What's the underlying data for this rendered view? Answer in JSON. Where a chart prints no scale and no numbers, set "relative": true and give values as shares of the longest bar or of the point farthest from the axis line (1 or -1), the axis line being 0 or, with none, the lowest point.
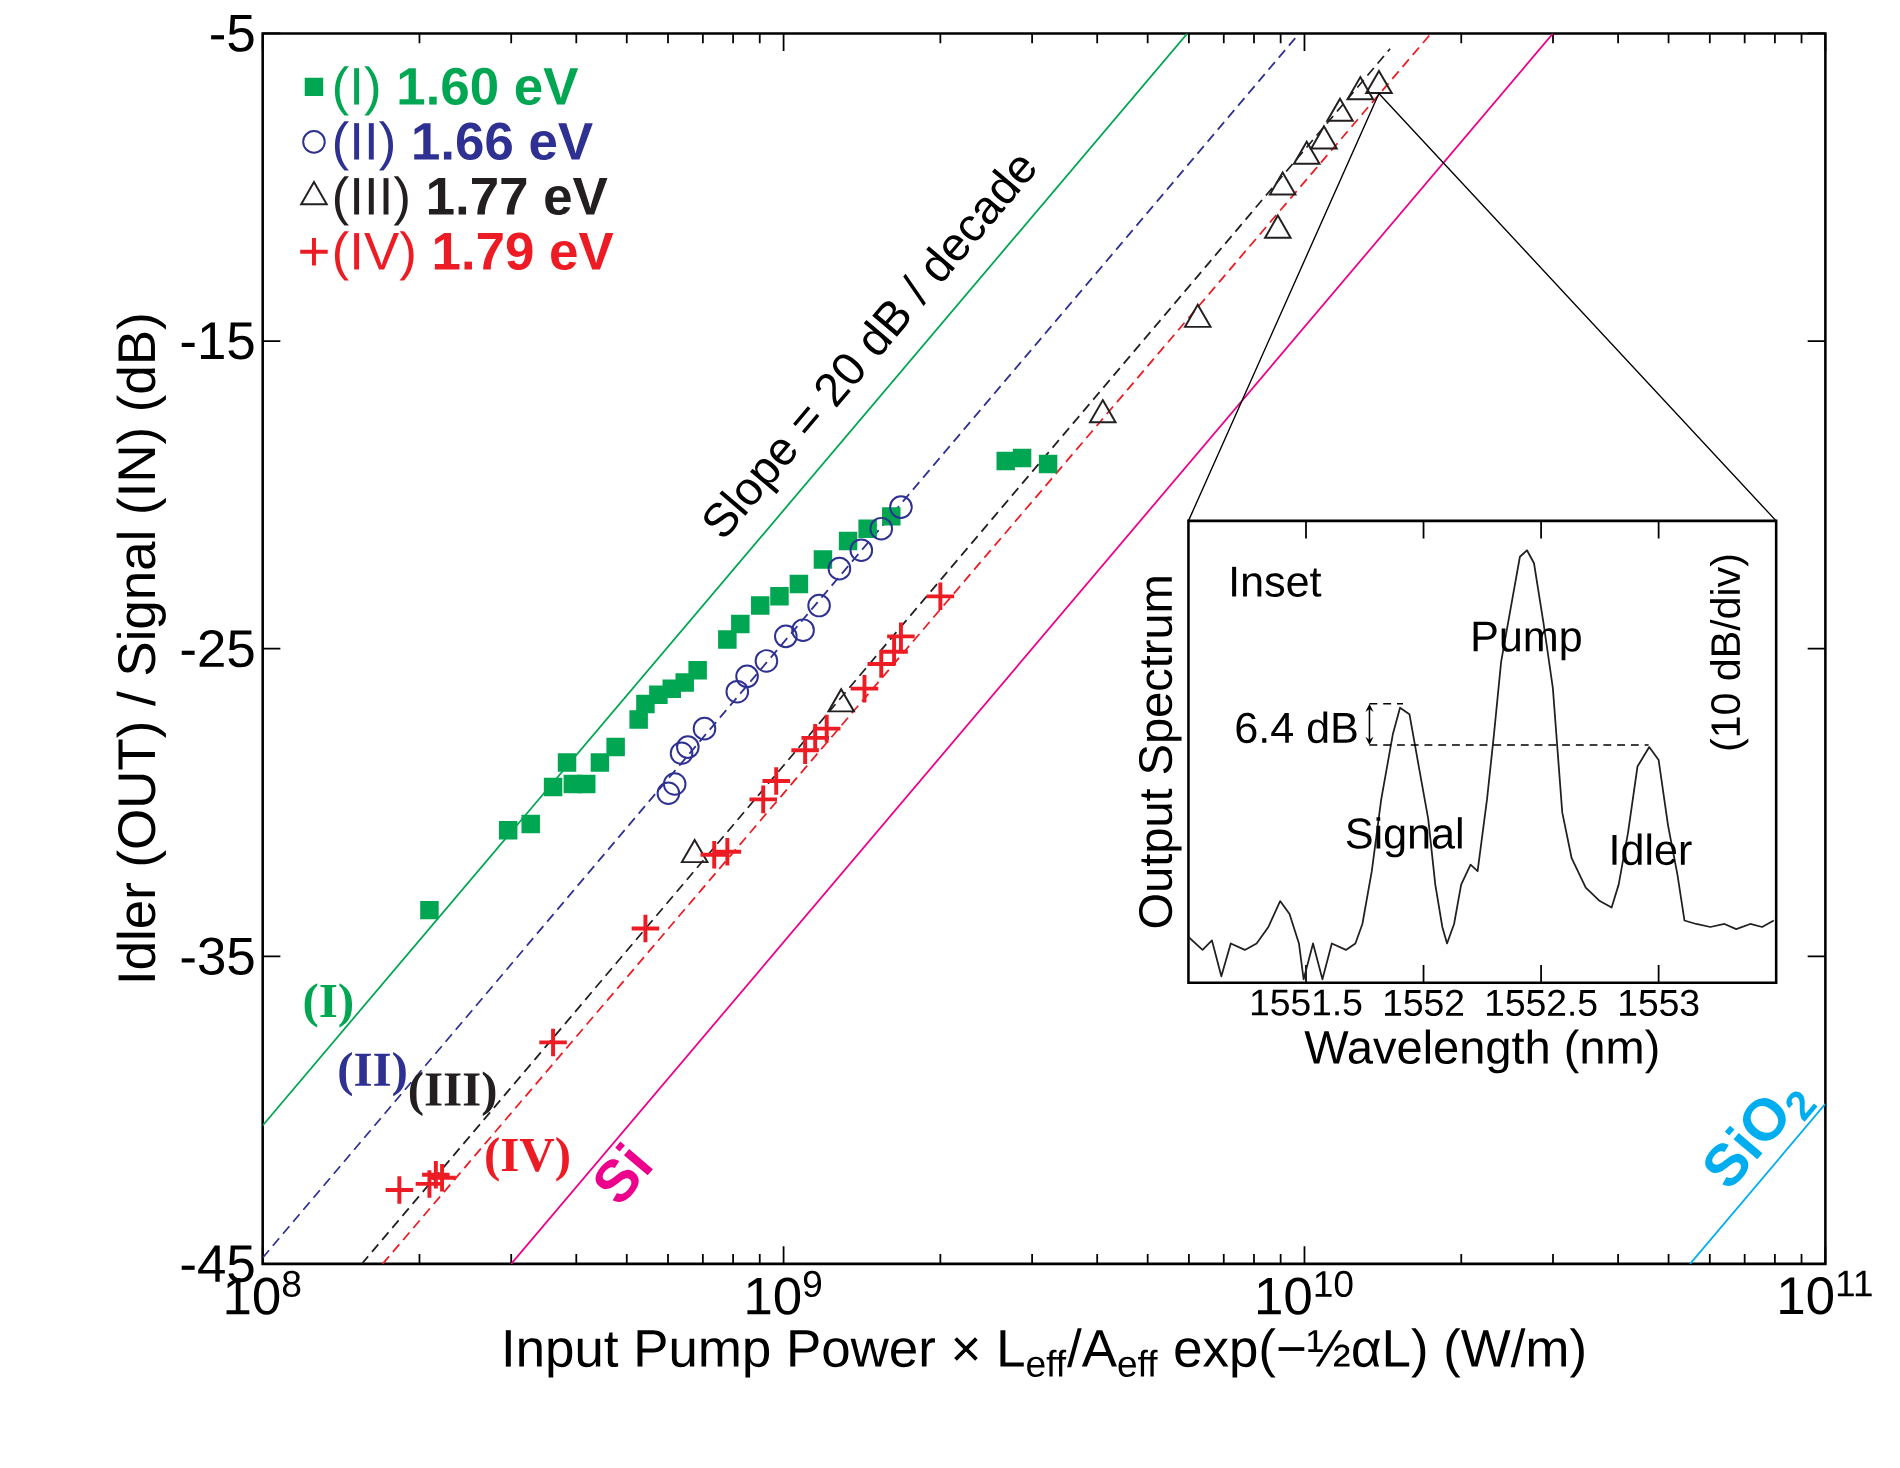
{
  "chart_data": [
    {
      "type": "scatter",
      "xlabel": "Input Pump Power × L$_{eff}$/A$_{eff}$ exp(−½αL)  (W/m)",
      "ylabel": "Idler (OUT) / Signal (IN)  (dB)",
      "log": "x",
      "legend": "top left",
      "xlim": [
        100000000.0,
        100000000000.0
      ],
      "ylim": [
        -45,
        -5
      ],
      "xticks": [
        {
          "value": 100000000.0,
          "label": "10$^{8}$"
        },
        {
          "value": 1000000000.0,
          "label": "10$^{9}$"
        },
        {
          "value": 10000000000.0,
          "label": "10$^{10}$"
        },
        {
          "value": 100000000000.0,
          "label": "10$^{11}$"
        }
      ],
      "yticks": [
        -45,
        -35,
        -25,
        -15,
        -5
      ],
      "annotations": [
        "Slope = 20 dB / decade"
      ],
      "series": [
        {
          "name": "(I) **1.60 eV**",
          "color": "#00a651",
          "marker": "square",
          "x": [
            209000000.0,
            296000000.0,
            327000000.0,
            361000000.0,
            394000000.0,
            418000000.0,
            384000000.0,
            444000000.0,
            476000000.0,
            527000000.0,
            543000000.0,
            575000000.0,
            610000000.0,
            646000000.0,
            684000000.0,
            780000000.0,
            826000000.0,
            902000000.0,
            982000000.0,
            1070000000.0,
            1190000000.0,
            1330000000.0,
            1450000000.0,
            1610000000.0,
            2670000000.0,
            2870000000.0,
            3220000000.0
          ],
          "values": [
            -33.5,
            -30.9,
            -30.7,
            -29.5,
            -29.4,
            -29.4,
            -28.7,
            -28.7,
            -28.2,
            -27.3,
            -26.8,
            -26.5,
            -26.3,
            -26.1,
            -25.7,
            -24.7,
            -24.2,
            -23.6,
            -23.3,
            -22.9,
            -22.1,
            -21.5,
            -21.1,
            -20.7,
            -18.9,
            -18.8,
            -19.0
          ]
        },
        {
          "name": "(II) **1.66 eV**",
          "color": "#2e3192",
          "marker": "circle",
          "x": [
            601000000.0,
            618000000.0,
            637000000.0,
            655000000.0,
            705000000.0,
            815000000.0,
            851000000.0,
            927000000.0,
            1010000000.0,
            1090000000.0,
            1170000000.0,
            1280000000.0,
            1410000000.0,
            1540000000.0,
            1680000000.0
          ],
          "values": [
            -29.7,
            -29.4,
            -28.4,
            -28.2,
            -27.6,
            -26.4,
            -25.9,
            -25.4,
            -24.6,
            -24.4,
            -23.6,
            -22.4,
            -21.8,
            -21.1,
            -20.4
          ]
        },
        {
          "name": "(III) **1.77 eV**",
          "color": "#231f20",
          "marker": "triangle",
          "x": [
            675000000.0,
            1290000000.0,
            4100000000.0,
            6240000000.0,
            8890000000.0,
            9080000000.0,
            10100000000.0,
            10900000000.0,
            11700000000.0,
            12800000000.0,
            13900000000.0
          ],
          "values": [
            -31.7,
            -26.8,
            -17.4,
            -14.3,
            -11.4,
            -10.0,
            -9.0,
            -8.5,
            -7.6,
            -6.9,
            -6.7
          ]
        },
        {
          "name": "(IV) **1.79 eV**",
          "color": "#ed1c24",
          "marker": "cross",
          "x": [
            183000000.0,
            209000000.0,
            215000000.0,
            221000000.0,
            361000000.0,
            543000000.0,
            736000000.0,
            780000000.0,
            914000000.0,
            968000000.0,
            1100000000.0,
            1150000000.0,
            1210000000.0,
            1430000000.0,
            1540000000.0,
            1630000000.0,
            1680000000.0,
            2000000000.0
          ],
          "values": [
            -42.6,
            -42.4,
            -42.1,
            -42.2,
            -37.8,
            -34.1,
            -31.7,
            -31.6,
            -29.9,
            -29.3,
            -28.3,
            -27.9,
            -27.6,
            -26.3,
            -25.5,
            -25.1,
            -24.6,
            -23.3
          ]
        },
        {
          "type": "line",
          "name": "(I)",
          "color": "#00a651",
          "line_style": "solid",
          "x": [
            100000000.0,
            5960000000.0
          ],
          "values": [
            -40.5,
            -5
          ]
        },
        {
          "type": "line",
          "name": "(II)",
          "color": "#2e3192",
          "line_style": "dashed",
          "x": [
            100000000.0,
            9770000000.0
          ],
          "values": [
            -44.8,
            -5
          ]
        },
        {
          "type": "line",
          "name": "(III)",
          "color": "#231f20",
          "line_style": "dashed",
          "x": [
            155000000.0,
            14600000000.0
          ],
          "values": [
            -45,
            -5.5
          ]
        },
        {
          "type": "line",
          "name": "(IV)",
          "color": "#ed1c24",
          "line_style": "dashed",
          "x": [
            170000000.0,
            17500000000.0
          ],
          "values": [
            -45,
            -5
          ]
        },
        {
          "type": "line",
          "name": "Si",
          "color": "#ec008c",
          "line_style": "solid",
          "x": [
            300000000.0,
            30000000000.0
          ],
          "values": [
            -45,
            -5
          ]
        },
        {
          "type": "line",
          "name": "SiO$_{2}$",
          "color": "#00aeef",
          "line_style": "solid",
          "x": [
            55000000000.0,
            100000000000.0
          ],
          "values": [
            -45,
            -39.8
          ]
        }
      ]
    },
    {
      "type": "line",
      "relative": true,
      "xlabel": "Wavelength (nm)",
      "ylabel": "Output Spectrum",
      "y2label": "(10 dB/div)",
      "tick_labels": "x",
      "xlim": [
        1551.0,
        1553.5
      ],
      "xticks": [
        1551.5,
        1552,
        1552.5,
        1553
      ],
      "annotations": [
        "Inset",
        "Pump",
        "Signal",
        "Idler",
        "6.4 dB"
      ],
      "series": [
        {
          "color": "#231f20",
          "x": [
            1551.0,
            1551.06,
            1551.1,
            1551.14,
            1551.18,
            1551.24,
            1551.29,
            1551.34,
            1551.39,
            1551.43,
            1551.47,
            1551.49,
            1551.53,
            1551.57,
            1551.61,
            1551.67,
            1551.71,
            1551.74,
            1551.78,
            1551.82,
            1551.87,
            1551.9,
            1551.94,
            1551.98,
            1552.02,
            1552.05,
            1552.08,
            1552.1,
            1552.13,
            1552.16,
            1552.2,
            1552.23,
            1552.27,
            1552.3,
            1552.33,
            1552.37,
            1552.41,
            1552.44,
            1552.47,
            1552.51,
            1552.55,
            1552.59,
            1552.63,
            1552.69,
            1552.75,
            1552.8,
            1552.83,
            1552.87,
            1552.91,
            1552.96,
            1553.0,
            1553.04,
            1553.08,
            1553.11,
            1553.16,
            1553.22,
            1553.28,
            1553.33,
            1553.39,
            1553.44,
            1553.49
          ],
          "values": [
            0.106,
            0.076,
            0.098,
            0.015,
            0.091,
            0.076,
            0.091,
            0.129,
            0.189,
            0.159,
            0.091,
            0.008,
            0.091,
            0.008,
            0.091,
            0.076,
            0.091,
            0.136,
            0.258,
            0.424,
            0.576,
            0.636,
            0.621,
            0.5,
            0.379,
            0.227,
            0.129,
            0.091,
            0.136,
            0.227,
            0.273,
            0.258,
            0.424,
            0.576,
            0.742,
            0.864,
            0.985,
            1.0,
            0.97,
            0.833,
            0.682,
            0.394,
            0.288,
            0.22,
            0.189,
            0.174,
            0.227,
            0.348,
            0.5,
            0.545,
            0.515,
            0.364,
            0.25,
            0.144,
            0.136,
            0.129,
            0.136,
            0.124,
            0.136,
            0.129,
            0.144
          ]
        }
      ]
    }
  ]
}
